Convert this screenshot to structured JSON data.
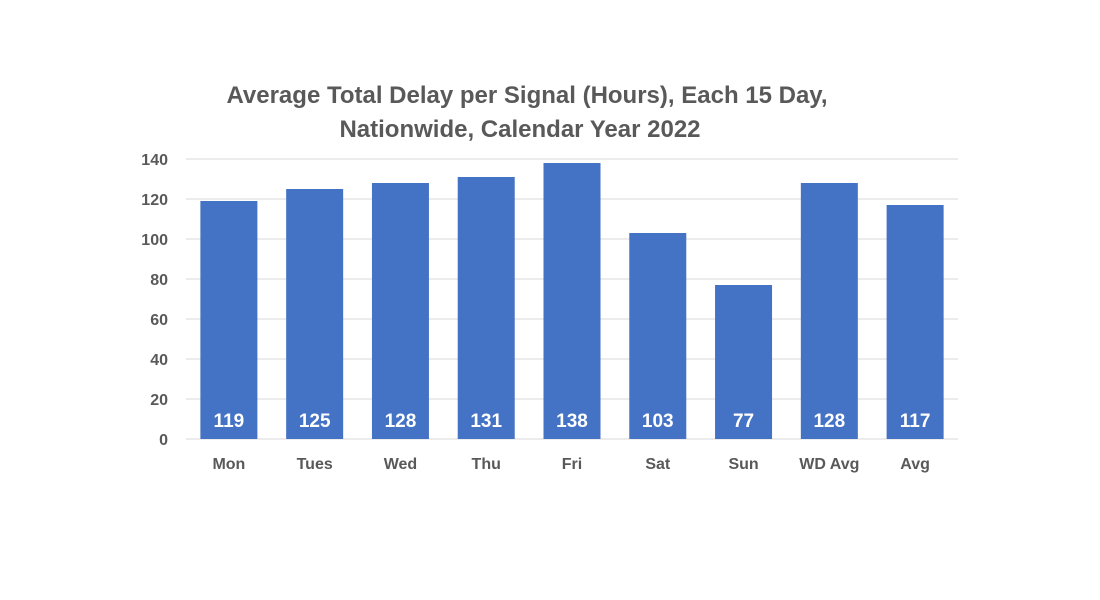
{
  "chart_data": {
    "type": "bar",
    "title_lines": [
      "Average Total Delay per Signal (Hours), Each 15 Day,",
      "Nationwide, Calendar Year 2022"
    ],
    "categories": [
      "Mon",
      "Tues",
      "Wed",
      "Thu",
      "Fri",
      "Sat",
      "Sun",
      "WD Avg",
      "Avg"
    ],
    "values": [
      119,
      125,
      128,
      131,
      138,
      103,
      77,
      128,
      117
    ],
    "data_labels": [
      "119",
      "125",
      "128",
      "131",
      "138",
      "103",
      "77",
      "128",
      "117"
    ],
    "xlabel": "",
    "ylabel": "",
    "ylim": [
      0,
      140
    ],
    "yticks": [
      0,
      20,
      40,
      60,
      80,
      100,
      120,
      140
    ],
    "grid": true,
    "legend": "none",
    "colors": {
      "bar": "#4472c4",
      "text": "#595959",
      "grid": "#d9d9d9",
      "data_label": "#ffffff"
    }
  }
}
